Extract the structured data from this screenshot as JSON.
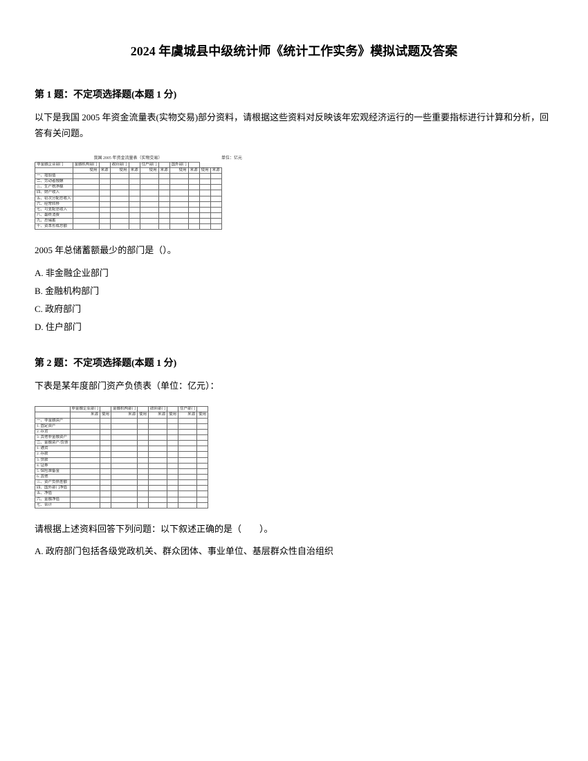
{
  "title": "2024 年虞城县中级统计师《统计工作实务》模拟试题及答案",
  "q1": {
    "header": "第 1 题：不定项选择题(本题 1 分)",
    "body": "以下是我国 2005 年资金流量表(实物交易)部分资料，请根据这些资料对反映该年宏观经济运行的一些重要指标进行计算和分析，回答有关问题。",
    "table_title": "我国 2005 年资金流量表（实物交易）",
    "table_unit": "单位：亿元",
    "stem": "2005 年总储蓄额最少的部门是（）。",
    "options": {
      "A": "A. 非金融企业部门",
      "B": "B. 金融机构部门",
      "C": "C. 政府部门",
      "D": "D. 住户部门"
    }
  },
  "q2": {
    "header": "第 2 题：不定项选择题(本题 1 分)",
    "body": "下表是某年度部门资产负债表（单位：亿元）：",
    "stem": "请根据上述资料回答下列问题：以下叙述正确的是（　　）。",
    "options": {
      "A": "A. 政府部门包括各级党政机关、群众团体、事业单位、基层群众性自治组织"
    }
  },
  "t1": {
    "rows": [
      [
        "非金融企业部门",
        "金融机构部门",
        "",
        "政府部门",
        "",
        "住户部门",
        "",
        "国外部门",
        ""
      ],
      [
        "",
        "使用",
        "来源",
        "使用",
        "来源",
        "使用",
        "来源",
        "使用",
        "来源",
        "使用",
        "来源"
      ],
      [
        "一、增加值",
        "",
        "",
        "",
        "",
        "",
        "",
        "",
        "",
        "",
        ""
      ],
      [
        "二、劳动者报酬",
        "",
        "",
        "",
        "",
        "",
        "",
        "",
        "",
        "",
        ""
      ],
      [
        "三、生产税净额",
        "",
        "",
        "",
        "",
        "",
        "",
        "",
        "",
        "",
        ""
      ],
      [
        "四、财产收入",
        "",
        "",
        "",
        "",
        "",
        "",
        "",
        "",
        "",
        ""
      ],
      [
        "五、初次分配总收入",
        "",
        "",
        "",
        "",
        "",
        "",
        "",
        "",
        "",
        ""
      ],
      [
        "六、经常转移",
        "",
        "",
        "",
        "",
        "",
        "",
        "",
        "",
        "",
        ""
      ],
      [
        "七、可支配总收入",
        "",
        "",
        "",
        "",
        "",
        "",
        "",
        "",
        "",
        ""
      ],
      [
        "八、最终消费",
        "",
        "",
        "",
        "",
        "",
        "",
        "",
        "",
        "",
        ""
      ],
      [
        "九、总储蓄",
        "",
        "",
        "",
        "",
        "",
        "",
        "",
        "",
        "",
        ""
      ],
      [
        "十、资本形成总额",
        "",
        "",
        "",
        "",
        "",
        "",
        "",
        "",
        "",
        ""
      ]
    ]
  },
  "t2": {
    "rows": [
      [
        "",
        "非金融企业部门",
        "",
        "金融机构部门",
        "",
        "政府部门",
        "",
        "住户部门",
        ""
      ],
      [
        "",
        "来源",
        "使用",
        "来源",
        "使用",
        "来源",
        "使用",
        "来源",
        "使用"
      ],
      [
        "一、非金融资产",
        "",
        "",
        "",
        "",
        "",
        "",
        "",
        ""
      ],
      [
        "1. 固定资产",
        "",
        "",
        "",
        "",
        "",
        "",
        "",
        ""
      ],
      [
        "2. 存货",
        "",
        "",
        "",
        "",
        "",
        "",
        "",
        ""
      ],
      [
        "3. 其他非金融资产",
        "",
        "",
        "",
        "",
        "",
        "",
        "",
        ""
      ],
      [
        "二、金融资产/负债",
        "",
        "",
        "",
        "",
        "",
        "",
        "",
        ""
      ],
      [
        "1. 通货",
        "",
        "",
        "",
        "",
        "",
        "",
        "",
        ""
      ],
      [
        "2. 存款",
        "",
        "",
        "",
        "",
        "",
        "",
        "",
        ""
      ],
      [
        "3. 贷款",
        "",
        "",
        "",
        "",
        "",
        "",
        "",
        ""
      ],
      [
        "4. 证券",
        "",
        "",
        "",
        "",
        "",
        "",
        "",
        ""
      ],
      [
        "5. 保险准备金",
        "",
        "",
        "",
        "",
        "",
        "",
        "",
        ""
      ],
      [
        "6. 其他",
        "",
        "",
        "",
        "",
        "",
        "",
        "",
        ""
      ],
      [
        "三、资产负债差额",
        "",
        "",
        "",
        "",
        "",
        "",
        "",
        ""
      ],
      [
        "四、国外部门净值",
        "",
        "",
        "",
        "",
        "",
        "",
        "",
        ""
      ],
      [
        "五、净值",
        "",
        "",
        "",
        "",
        "",
        "",
        "",
        ""
      ],
      [
        "六、金融净值",
        "",
        "",
        "",
        "",
        "",
        "",
        "",
        ""
      ],
      [
        "七、合计",
        "",
        "",
        "",
        "",
        "",
        "",
        "",
        ""
      ]
    ]
  },
  "colors": {
    "text": "#000000",
    "bg": "#ffffff",
    "border": "#666666"
  }
}
